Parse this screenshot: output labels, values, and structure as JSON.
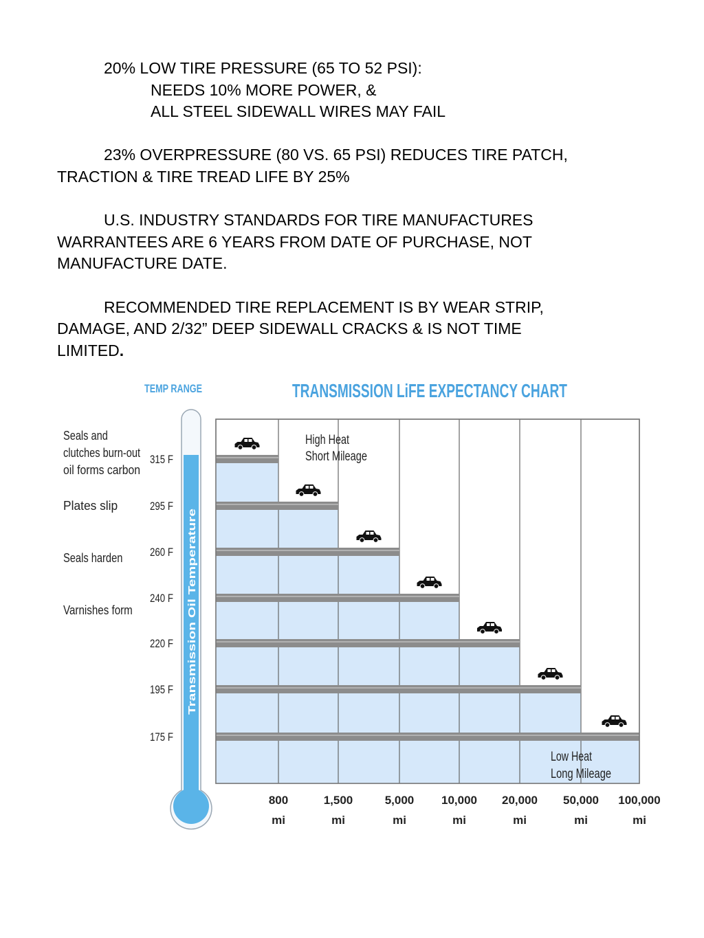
{
  "document": {
    "paragraphs": [
      {
        "lines": [
          {
            "text": "20% LOW TIRE PRESSURE (65 TO 52 PSI):",
            "indent": 1
          },
          {
            "text": "NEEDS 10% MORE POWER, &",
            "indent": 2
          },
          {
            "text": "ALL STEEL SIDEWALL WIRES MAY FAIL",
            "indent": 2
          }
        ]
      },
      {
        "lines": [
          {
            "text": "23% OVERPRESSURE (80 VS. 65 PSI) REDUCES TIRE PATCH,",
            "indent": 1
          },
          {
            "text": "TRACTION & TIRE TREAD LIFE BY 25%",
            "indent": 0
          }
        ]
      },
      {
        "lines": [
          {
            "text": "U.S. INDUSTRY STANDARDS FOR TIRE MANUFACTURES",
            "indent": 1
          },
          {
            "text": "WARRANTEES ARE 6 YEARS FROM DATE OF PURCHASE, NOT",
            "indent": 0
          },
          {
            "text": "MANUFACTURE DATE.",
            "indent": 0
          }
        ]
      },
      {
        "lines": [
          {
            "text": "RECOMMENDED TIRE REPLACEMENT IS BY WEAR STRIP,",
            "indent": 1
          },
          {
            "text": "DAMAGE, AND 2/32” DEEP SIDEWALL CRACKS & IS NOT TIME",
            "indent": 0
          },
          {
            "text": "LIMITED",
            "indent": 0,
            "suffix_bold": "."
          }
        ]
      }
    ]
  },
  "chart_data": {
    "type": "bar",
    "title": "TRANSMISSION LiFE EXPECTANCY CHART",
    "temp_range_label": "TEMP RANGE",
    "thermometer_label": "Transmission Oil Temperature",
    "categories": [
      "800 mi",
      "1,500 mi",
      "5,000 mi",
      "10,000 mi",
      "20,000 mi",
      "50,000 mi",
      "100,000 mi"
    ],
    "x_ticks": [
      {
        "value": "800",
        "unit": "mi"
      },
      {
        "value": "1,500",
        "unit": "mi"
      },
      {
        "value": "5,000",
        "unit": "mi"
      },
      {
        "value": "10,000",
        "unit": "mi"
      },
      {
        "value": "20,000",
        "unit": "mi"
      },
      {
        "value": "50,000",
        "unit": "mi"
      },
      {
        "value": "100,000",
        "unit": "mi"
      }
    ],
    "y_ticks": [
      "315 F",
      "295 F",
      "260 F",
      "240 F",
      "220 F",
      "195 F",
      "175 F"
    ],
    "values": [
      315,
      295,
      260,
      240,
      220,
      195,
      175
    ],
    "y_unit": "F",
    "effects": [
      {
        "lines": [
          "Seals and",
          "clutches burn-out",
          "oil forms carbon"
        ],
        "temp": 315
      },
      {
        "lines": [
          "Plates slip"
        ],
        "temp": 295
      },
      {
        "lines": [
          "Seals harden"
        ],
        "temp": 260
      },
      {
        "lines": [
          "Varnishes form"
        ],
        "temp": 240
      }
    ],
    "annotations": {
      "high": [
        "High Heat",
        "Short Mileage"
      ],
      "low": [
        "Low Heat",
        "Long Mileage"
      ]
    },
    "colors": {
      "title": "#4aa3df",
      "thermometer": "#5ab4e8",
      "step_fill": "#d6e8fa",
      "band": "#8c8c8c"
    },
    "icons": {
      "car": "car-icon"
    },
    "grid": true,
    "legend": "none"
  }
}
